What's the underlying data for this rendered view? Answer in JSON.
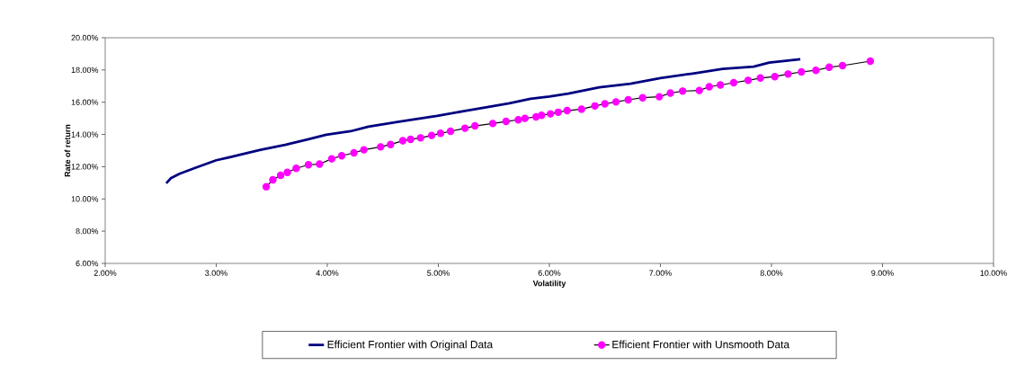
{
  "chart_data": {
    "type": "line",
    "xlabel": "Volatility",
    "ylabel": "Rate of return",
    "xlim": [
      2,
      10
    ],
    "ylim": [
      6,
      20
    ],
    "xticks": [
      {
        "value": 2,
        "label": "2.00%"
      },
      {
        "value": 3,
        "label": "3.00%"
      },
      {
        "value": 4,
        "label": "4.00%"
      },
      {
        "value": 5,
        "label": "5.00%"
      },
      {
        "value": 6,
        "label": "6.00%"
      },
      {
        "value": 7,
        "label": "7.00%"
      },
      {
        "value": 8,
        "label": "8.00%"
      },
      {
        "value": 9,
        "label": "9.00%"
      },
      {
        "value": 10,
        "label": "10.00%"
      }
    ],
    "yticks": [
      {
        "value": 6,
        "label": "6.00%"
      },
      {
        "value": 8,
        "label": "8.00%"
      },
      {
        "value": 10,
        "label": "10.00%"
      },
      {
        "value": 12,
        "label": "12.00%"
      },
      {
        "value": 14,
        "label": "14.00%"
      },
      {
        "value": 16,
        "label": "16.00%"
      },
      {
        "value": 18,
        "label": "18.00%"
      },
      {
        "value": 20,
        "label": "20.00%"
      }
    ],
    "grid": false,
    "legend": "bottom",
    "series": [
      {
        "name": "Efficient Frontier with Original Data",
        "color": "#000080",
        "marker": "none",
        "x": [
          2.55,
          2.59,
          2.67,
          2.81,
          3.0,
          3.18,
          3.4,
          3.62,
          3.83,
          3.99,
          4.21,
          4.37,
          4.62,
          4.75,
          4.99,
          5.24,
          5.43,
          5.64,
          5.83,
          6.0,
          6.17,
          6.45,
          6.73,
          7.0,
          7.29,
          7.56,
          7.84,
          7.98,
          8.26
        ],
        "values": [
          10.97,
          11.28,
          11.56,
          11.93,
          12.4,
          12.68,
          13.05,
          13.36,
          13.7,
          13.98,
          14.2,
          14.48,
          14.76,
          14.91,
          15.15,
          15.46,
          15.69,
          15.93,
          16.21,
          16.35,
          16.53,
          16.92,
          17.15,
          17.5,
          17.78,
          18.07,
          18.21,
          18.46,
          18.67
        ]
      },
      {
        "name": "Efficient Frontier with Unsmooth Data",
        "color": "#ff00ff",
        "marker": "circle",
        "x": [
          3.45,
          3.51,
          3.58,
          3.64,
          3.72,
          3.83,
          3.93,
          4.04,
          4.13,
          4.24,
          4.33,
          4.48,
          4.57,
          4.68,
          4.75,
          4.84,
          4.94,
          5.02,
          5.11,
          5.24,
          5.33,
          5.49,
          5.61,
          5.72,
          5.78,
          5.88,
          5.93,
          6.01,
          6.08,
          6.16,
          6.29,
          6.41,
          6.5,
          6.6,
          6.71,
          6.84,
          6.99,
          7.09,
          7.2,
          7.35,
          7.44,
          7.54,
          7.66,
          7.79,
          7.9,
          8.03,
          8.15,
          8.27,
          8.4,
          8.52,
          8.64,
          8.89
        ],
        "values": [
          10.76,
          11.19,
          11.47,
          11.65,
          11.9,
          12.12,
          12.16,
          12.49,
          12.68,
          12.86,
          13.05,
          13.23,
          13.38,
          13.61,
          13.7,
          13.79,
          13.94,
          14.07,
          14.2,
          14.39,
          14.53,
          14.68,
          14.81,
          14.91,
          15.0,
          15.09,
          15.19,
          15.28,
          15.38,
          15.48,
          15.57,
          15.77,
          15.9,
          16.02,
          16.15,
          16.28,
          16.34,
          16.57,
          16.69,
          16.73,
          16.96,
          17.07,
          17.21,
          17.36,
          17.5,
          17.59,
          17.75,
          17.88,
          17.98,
          18.17,
          18.27,
          18.55
        ]
      }
    ]
  }
}
